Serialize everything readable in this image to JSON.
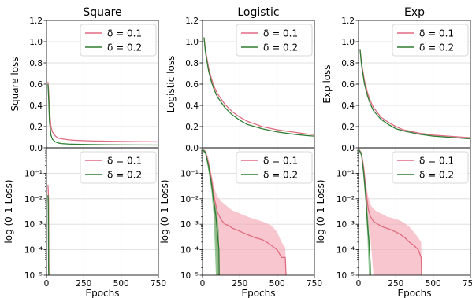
{
  "figure": {
    "background": "#ffffff",
    "grid_color": "#d9d9d9",
    "axis_color": "#000000"
  },
  "series_styles": [
    {
      "label": "δ = 0.1",
      "color": "#e06c82",
      "band_color": "#f4a7b3"
    },
    {
      "label": "δ = 0.2",
      "color": "#2e7d32",
      "band_color": "#5aaa5e"
    }
  ],
  "chart_data": [
    {
      "type": "line",
      "panel": "top-left",
      "title": "Square",
      "xlabel": "",
      "ylabel": "Square loss",
      "xlim": [
        0,
        750
      ],
      "ylim": [
        0,
        1.2
      ],
      "yscale": "linear",
      "grid": true,
      "xticks": [
        0,
        250,
        500,
        750
      ],
      "yticks": [
        0.0,
        0.2,
        0.4,
        0.6,
        0.8,
        1.0,
        1.2
      ],
      "legend": "top-right",
      "series": [
        {
          "name": "δ = 0.1",
          "x": [
            10,
            15,
            20,
            30,
            40,
            60,
            80,
            100,
            150,
            200,
            300,
            400,
            500,
            600,
            750
          ],
          "y": [
            0.62,
            0.52,
            0.35,
            0.2,
            0.15,
            0.11,
            0.09,
            0.085,
            0.075,
            0.07,
            0.065,
            0.062,
            0.06,
            0.058,
            0.056
          ]
        },
        {
          "name": "δ = 0.2",
          "x": [
            10,
            15,
            20,
            30,
            40,
            60,
            80,
            100,
            150,
            200,
            300,
            400,
            500,
            600,
            750
          ],
          "y": [
            0.6,
            0.45,
            0.25,
            0.12,
            0.08,
            0.055,
            0.045,
            0.04,
            0.035,
            0.033,
            0.03,
            0.029,
            0.028,
            0.027,
            0.026
          ]
        }
      ]
    },
    {
      "type": "line",
      "panel": "top-middle",
      "title": "Logistic",
      "xlabel": "",
      "ylabel": "Logistic loss",
      "xlim": [
        0,
        750
      ],
      "ylim": [
        0,
        1.2
      ],
      "yscale": "linear",
      "grid": true,
      "xticks": [
        0,
        250,
        500,
        750
      ],
      "yticks": [
        0.0,
        0.2,
        0.4,
        0.6,
        0.8,
        1.0,
        1.2
      ],
      "legend": "top-right",
      "series": [
        {
          "name": "δ = 0.1",
          "x": [
            10,
            20,
            40,
            60,
            80,
            100,
            150,
            200,
            250,
            300,
            400,
            500,
            600,
            700,
            750
          ],
          "y": [
            1.04,
            0.92,
            0.76,
            0.65,
            0.57,
            0.51,
            0.41,
            0.34,
            0.29,
            0.25,
            0.2,
            0.17,
            0.15,
            0.13,
            0.125
          ]
        },
        {
          "name": "δ = 0.2",
          "x": [
            10,
            20,
            40,
            60,
            80,
            100,
            150,
            200,
            250,
            300,
            400,
            500,
            600,
            700,
            750
          ],
          "y": [
            1.04,
            0.9,
            0.73,
            0.62,
            0.54,
            0.48,
            0.38,
            0.31,
            0.26,
            0.22,
            0.18,
            0.15,
            0.13,
            0.115,
            0.11
          ]
        }
      ]
    },
    {
      "type": "line",
      "panel": "top-right",
      "title": "Exp",
      "xlabel": "",
      "ylabel": "Exp loss",
      "xlim": [
        0,
        750
      ],
      "ylim": [
        0,
        1.2
      ],
      "yscale": "linear",
      "grid": true,
      "xticks": [
        0,
        250,
        500,
        750
      ],
      "yticks": [
        0.0,
        0.2,
        0.4,
        0.6,
        0.8,
        1.0,
        1.2
      ],
      "legend": "top-right",
      "series": [
        {
          "name": "δ = 0.1",
          "x": [
            10,
            20,
            40,
            60,
            80,
            100,
            150,
            200,
            250,
            300,
            400,
            500,
            600,
            700,
            750
          ],
          "y": [
            0.93,
            0.8,
            0.63,
            0.52,
            0.44,
            0.38,
            0.29,
            0.24,
            0.2,
            0.17,
            0.14,
            0.12,
            0.11,
            0.1,
            0.095
          ]
        },
        {
          "name": "δ = 0.2",
          "x": [
            10,
            20,
            40,
            60,
            80,
            100,
            150,
            200,
            250,
            300,
            400,
            500,
            600,
            700,
            750
          ],
          "y": [
            0.93,
            0.78,
            0.6,
            0.49,
            0.41,
            0.35,
            0.27,
            0.22,
            0.18,
            0.16,
            0.13,
            0.11,
            0.1,
            0.09,
            0.085
          ]
        }
      ]
    },
    {
      "type": "line",
      "panel": "bottom-left",
      "title": "",
      "xlabel": "Epochs",
      "ylabel": "log (0-1 Loss)",
      "xlim": [
        0,
        750
      ],
      "ylim": [
        1e-05,
        1
      ],
      "yscale": "log",
      "grid": true,
      "xticks": [
        0,
        250,
        500,
        750
      ],
      "yticks": [
        1e-05,
        0.0001,
        0.001,
        0.01,
        0.1
      ],
      "legend": "top-right",
      "series": [
        {
          "name": "δ = 0.1",
          "x": [
            10,
            12,
            14,
            15,
            16,
            17
          ],
          "y": [
            0.035,
            0.02,
            0.008,
            0.001,
            3e-05,
            1e-05
          ]
        },
        {
          "name": "δ = 0.2",
          "x": [
            10,
            12,
            13,
            14,
            15
          ],
          "y": [
            0.014,
            0.006,
            0.0008,
            2e-05,
            1e-05
          ]
        }
      ]
    },
    {
      "type": "line",
      "panel": "bottom-middle",
      "title": "",
      "xlabel": "Epochs",
      "ylabel": "log (0-1 Loss)",
      "xlim": [
        0,
        750
      ],
      "ylim": [
        1e-05,
        1
      ],
      "yscale": "log",
      "grid": true,
      "xticks": [
        0,
        250,
        500,
        750
      ],
      "yticks": [
        1e-05,
        0.0001,
        0.001,
        0.01,
        0.1
      ],
      "legend": "top-right",
      "series": [
        {
          "name": "δ = 0.1",
          "x": [
            5,
            20,
            40,
            60,
            80,
            100,
            125,
            150,
            175,
            200,
            230,
            260,
            300,
            350,
            400,
            430,
            460,
            500,
            530,
            555,
            560
          ],
          "y": [
            0.8,
            0.7,
            0.25,
            0.06,
            0.01,
            0.003,
            0.0015,
            0.001,
            0.0009,
            0.0007,
            0.0006,
            0.0005,
            0.0004,
            0.0003,
            0.00025,
            0.0002,
            0.00015,
            0.0001,
            5e-05,
            5e-05,
            1e-05
          ],
          "band_upper": [
            0.9,
            0.8,
            0.4,
            0.1,
            0.025,
            0.012,
            0.008,
            0.006,
            0.0045,
            0.0035,
            0.003,
            0.0025,
            0.002,
            0.0016,
            0.0013,
            0.0011,
            0.0009,
            0.0005,
            0.0002,
            0.00012,
            1e-05
          ],
          "band_lower": [
            0.7,
            0.6,
            0.15,
            0.03,
            0.003,
            1e-05,
            1e-05,
            1e-05,
            1e-05,
            1e-05,
            1e-05,
            1e-05,
            1e-05,
            1e-05,
            1e-05,
            1e-05,
            1e-05,
            1e-05,
            1e-05,
            1e-05,
            1e-05
          ]
        },
        {
          "name": "δ = 0.2",
          "x": [
            5,
            20,
            40,
            60,
            75,
            90,
            100,
            110,
            112
          ],
          "y": [
            0.8,
            0.65,
            0.2,
            0.04,
            0.008,
            0.002,
            0.0005,
            0.0001,
            1e-05
          ],
          "band_upper": [
            0.9,
            0.75,
            0.3,
            0.06,
            0.015,
            0.005,
            0.002,
            0.0005,
            1e-05
          ],
          "band_lower": [
            0.7,
            0.55,
            0.12,
            0.02,
            0.002,
            1e-05,
            1e-05,
            1e-05,
            1e-05
          ]
        }
      ]
    },
    {
      "type": "line",
      "panel": "bottom-right",
      "title": "",
      "xlabel": "Epochs",
      "ylabel": "log (0-1 Loss)",
      "xlim": [
        0,
        750
      ],
      "ylim": [
        1e-05,
        1
      ],
      "yscale": "log",
      "grid": true,
      "xticks": [
        0,
        250,
        500,
        750
      ],
      "yticks": [
        1e-05,
        0.0001,
        0.001,
        0.01,
        0.1
      ],
      "legend": "top-right",
      "series": [
        {
          "name": "δ = 0.1",
          "x": [
            5,
            20,
            35,
            50,
            65,
            80,
            100,
            130,
            160,
            190,
            220,
            250,
            280,
            310,
            340,
            370,
            400,
            420,
            422
          ],
          "y": [
            0.8,
            0.6,
            0.15,
            0.02,
            0.004,
            0.002,
            0.0013,
            0.001,
            0.0008,
            0.0007,
            0.0006,
            0.0005,
            0.0004,
            0.0003,
            0.0002,
            0.00015,
            0.0001,
            5e-05,
            1e-05
          ],
          "band_upper": [
            0.9,
            0.7,
            0.25,
            0.04,
            0.012,
            0.006,
            0.004,
            0.003,
            0.0025,
            0.002,
            0.0018,
            0.0016,
            0.0014,
            0.0011,
            0.0008,
            0.0005,
            0.0003,
            0.0002,
            1e-05
          ],
          "band_lower": [
            0.7,
            0.5,
            0.08,
            0.008,
            0.0009,
            0.0003,
            1e-05,
            1e-05,
            1e-05,
            1e-05,
            1e-05,
            1e-05,
            1e-05,
            1e-05,
            1e-05,
            1e-05,
            1e-05,
            1e-05,
            1e-05
          ]
        },
        {
          "name": "δ = 0.2",
          "x": [
            5,
            20,
            35,
            50,
            60,
            70,
            78,
            80
          ],
          "y": [
            0.8,
            0.55,
            0.1,
            0.01,
            0.001,
            0.0002,
            3e-05,
            1e-05
          ],
          "band_upper": [
            0.9,
            0.65,
            0.18,
            0.02,
            0.003,
            0.0006,
            0.0001,
            1e-05
          ],
          "band_lower": [
            0.7,
            0.45,
            0.05,
            0.004,
            0.0003,
            1e-05,
            1e-05,
            1e-05
          ]
        }
      ]
    }
  ]
}
